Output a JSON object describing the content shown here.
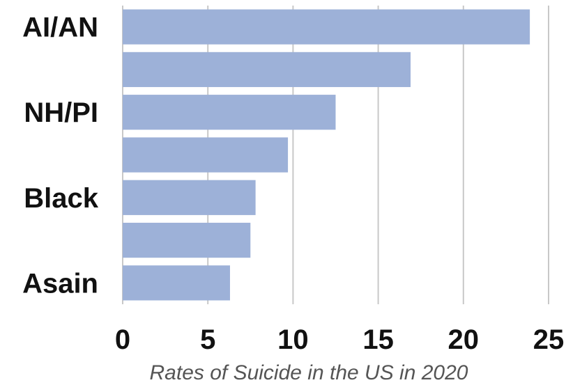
{
  "chart_data": {
    "type": "bar",
    "orientation": "horizontal",
    "categories": [
      "AI/AN",
      "",
      "NH/PI",
      "",
      "Black",
      "",
      "Asain"
    ],
    "values": [
      23.9,
      16.9,
      12.5,
      9.7,
      7.8,
      7.5,
      6.3
    ],
    "xlabel": "Rates of Suicide in the US in 2020",
    "xlim": [
      0,
      25
    ],
    "xticks": [
      0,
      5,
      10,
      15,
      20,
      25
    ],
    "grid": "vertical",
    "bar_color": "#9db1d8",
    "grid_color": "#c8c8c8"
  }
}
